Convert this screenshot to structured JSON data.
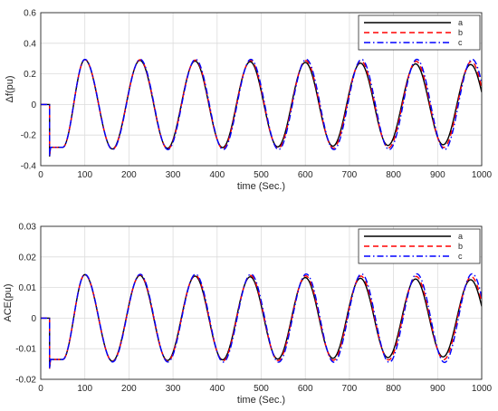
{
  "chart_data": [
    {
      "type": "line",
      "title": "",
      "xlabel": "time (Sec.)",
      "ylabel": "Δf(pu)",
      "xlim": [
        0,
        1000
      ],
      "ylim": [
        -0.4,
        0.6
      ],
      "xticks": [
        "0",
        "100",
        "200",
        "300",
        "400",
        "500",
        "600",
        "700",
        "800",
        "900",
        "1000"
      ],
      "yticks": [
        "-0.4",
        "-0.2",
        "0",
        "0.2",
        "0.4",
        "0.6"
      ],
      "grid": true,
      "legend_position": "top-right",
      "period": 125,
      "step": {
        "time": 20,
        "dip": -0.34,
        "plateau": -0.28,
        "plateau_end": 50
      },
      "series": [
        {
          "name": "a",
          "color": "#000000",
          "style": "solid",
          "amplitude_start": 0.295,
          "amplitude_end": 0.26
        },
        {
          "name": "b",
          "color": "#ff0000",
          "style": "dashed",
          "amplitude_start": 0.295,
          "amplitude_end": 0.28
        },
        {
          "name": "c",
          "color": "#0000ff",
          "style": "dashdot",
          "amplitude_start": 0.295,
          "amplitude_end": 0.295
        }
      ]
    },
    {
      "type": "line",
      "title": "",
      "xlabel": "time (Sec.)",
      "ylabel": "ACE(pu)",
      "xlim": [
        0,
        1000
      ],
      "ylim": [
        -0.02,
        0.03
      ],
      "xticks": [
        "0",
        "100",
        "200",
        "300",
        "400",
        "500",
        "600",
        "700",
        "800",
        "900",
        "1000"
      ],
      "yticks": [
        "-0.02",
        "-0.01",
        "0",
        "0.01",
        "0.02",
        "0.03"
      ],
      "grid": true,
      "legend_position": "top-right",
      "period": 125,
      "step": {
        "time": 20,
        "dip": -0.0165,
        "plateau": -0.0135,
        "plateau_end": 50
      },
      "series": [
        {
          "name": "a",
          "color": "#000000",
          "style": "solid",
          "amplitude_start": 0.0143,
          "amplitude_end": 0.0125
        },
        {
          "name": "b",
          "color": "#ff0000",
          "style": "dashed",
          "amplitude_start": 0.0143,
          "amplitude_end": 0.0135
        },
        {
          "name": "c",
          "color": "#0000ff",
          "style": "dashdot",
          "amplitude_start": 0.0143,
          "amplitude_end": 0.0145
        }
      ]
    }
  ]
}
